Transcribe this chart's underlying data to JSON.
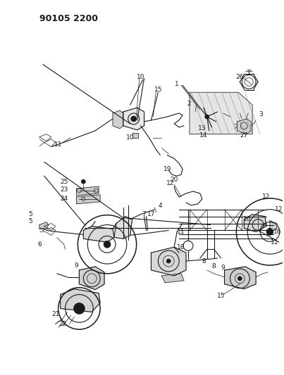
{
  "title_code": "90105 2200",
  "bg_color": "#ffffff",
  "line_color": "#1a1a1a",
  "title_fontsize": 9,
  "label_fontsize": 6.5,
  "fig_width": 4.03,
  "fig_height": 5.33,
  "dpi": 100
}
